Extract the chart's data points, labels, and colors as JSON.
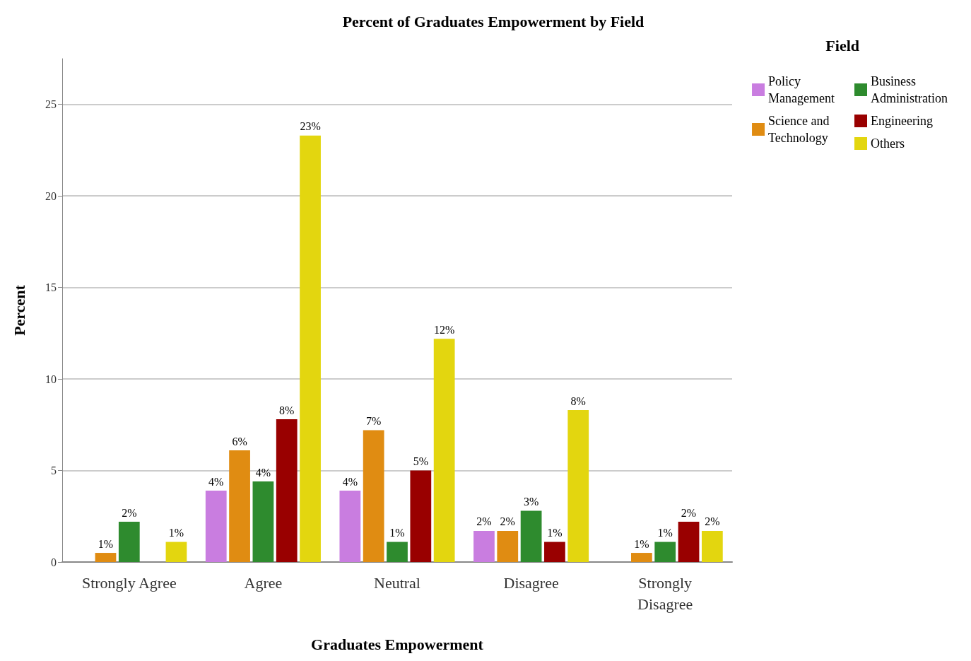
{
  "chart_data": {
    "type": "bar",
    "title": "Percent of Graduates Empowerment by Field",
    "xlabel": "Graduates Empowerment",
    "ylabel": "Percent",
    "legend_title": "Field",
    "legend": "top right",
    "grid": "y",
    "categories": [
      "Strongly Agree",
      "Agree",
      "Neutral",
      "Disagree",
      "Strongly Disagree"
    ],
    "ylim": [
      0,
      27.5
    ],
    "yticks": [
      0,
      5,
      10,
      15,
      20,
      25
    ],
    "series": [
      {
        "name": "Policy Management",
        "color": "#c97de0",
        "values": [
          null,
          3.9,
          3.9,
          1.7,
          null
        ],
        "value_labels": [
          null,
          "4%",
          "4%",
          "2%",
          null
        ]
      },
      {
        "name": "Science and Technology",
        "color": "#e08c12",
        "values": [
          0.5,
          6.1,
          7.2,
          1.7,
          0.5
        ],
        "value_labels": [
          "1%",
          "6%",
          "7%",
          "2%",
          "1%"
        ]
      },
      {
        "name": "Business Administration",
        "color": "#2e8b2e",
        "values": [
          2.2,
          4.4,
          1.1,
          2.8,
          1.1
        ],
        "value_labels": [
          "2%",
          "4%",
          "1%",
          "3%",
          "1%"
        ]
      },
      {
        "name": "Engineering",
        "color": "#990000",
        "values": [
          null,
          7.8,
          5.0,
          1.1,
          2.2
        ],
        "value_labels": [
          null,
          "8%",
          "5%",
          "1%",
          "2%"
        ]
      },
      {
        "name": "Others",
        "color": "#e3d60f",
        "values": [
          1.1,
          23.3,
          12.2,
          8.3,
          1.7
        ],
        "value_labels": [
          "1%",
          "23%",
          "12%",
          "8%",
          "2%"
        ]
      }
    ]
  }
}
